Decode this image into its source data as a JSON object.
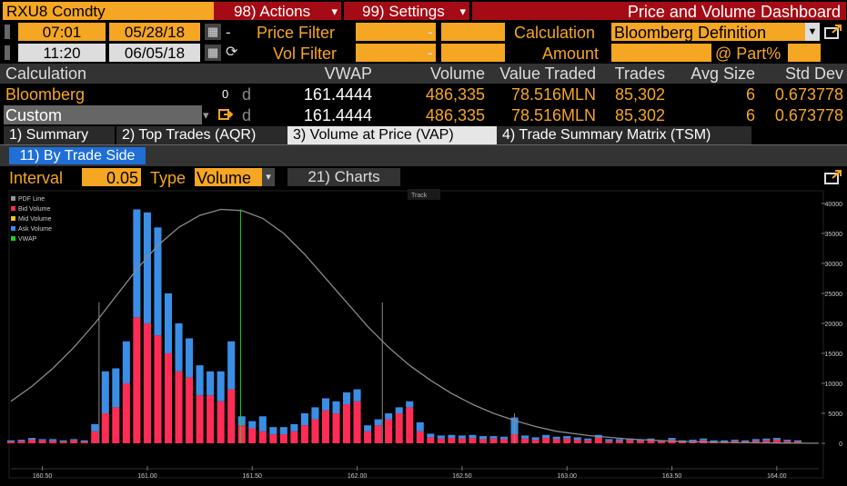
{
  "header": {
    "ticker": "RXU8 Comdty",
    "actions": "98) Actions",
    "settings": "99) Settings",
    "title": "Price and Volume Dashboard"
  },
  "time_row1": {
    "time": "07:01",
    "date": "05/28/18",
    "price_filter": "Price Filter",
    "dash": "-",
    "calc_label": "Calculation",
    "calc_value": "Bloomberg Definition"
  },
  "time_row2": {
    "time": "11:20",
    "date": "06/05/18",
    "vol_filter": "Vol Filter",
    "dash": "-",
    "amount": "Amount",
    "part": "@ Part%"
  },
  "table": {
    "headers": [
      "Calculation",
      "VWAP",
      "Volume",
      "Value Traded",
      "Trades",
      "Avg Size",
      "Std Dev"
    ],
    "rows": [
      {
        "name": "Bloomberg",
        "vwap": "161.4444",
        "volume": "486,335",
        "value": "78.516MLN",
        "trades": "85,302",
        "avg": "6",
        "std": "0.673778",
        "d": "d",
        "idx": "0"
      },
      {
        "name": "Custom",
        "vwap": "161.4444",
        "volume": "486,335",
        "value": "78.516MLN",
        "trades": "85,302",
        "avg": "6",
        "std": "0.673778",
        "d": "d"
      }
    ]
  },
  "tabs": [
    "1) Summary",
    "2) Top Trades (AQR)",
    "3) Volume at Price (VAP)",
    "4) Trade Summary Matrix (TSM)"
  ],
  "subtab": "11) By Trade Side",
  "controls": {
    "interval_label": "Interval",
    "interval_value": "0.05",
    "type_label": "Type",
    "type_value": "Volume",
    "charts": "21) Charts"
  },
  "chart_data": {
    "type": "bar",
    "track": "Track",
    "legend": [
      {
        "name": "PDF Line",
        "color": "#999999"
      },
      {
        "name": "Bid Volume",
        "color": "#ff2d55"
      },
      {
        "name": "Mid Volume",
        "color": "#f0c419"
      },
      {
        "name": "Ask Volume",
        "color": "#3a8ee6"
      },
      {
        "name": "VWAP",
        "color": "#22cc22"
      }
    ],
    "x_ticks": [
      "160.50",
      "161.00",
      "161.50",
      "162.00",
      "162.50",
      "163.00",
      "163.50",
      "164.00"
    ],
    "x_tick_values": [
      160.5,
      161.0,
      161.5,
      162.0,
      162.5,
      163.0,
      163.5,
      164.0
    ],
    "y_ticks": [
      "0",
      "5000",
      "10000",
      "15000",
      "20000",
      "25000",
      "30000",
      "35000",
      "40000"
    ],
    "y_tick_values": [
      0,
      5000,
      10000,
      15000,
      20000,
      25000,
      30000,
      35000,
      40000
    ],
    "xlim": [
      160.35,
      164.2
    ],
    "ylim": [
      0,
      41500
    ],
    "vwap": 161.4444,
    "bar_width": 0.035,
    "bars": [
      {
        "x": 160.35,
        "bid": 300,
        "ask": 200
      },
      {
        "x": 160.4,
        "bid": 400,
        "ask": 200
      },
      {
        "x": 160.45,
        "bid": 600,
        "ask": 300
      },
      {
        "x": 160.5,
        "bid": 500,
        "ask": 200
      },
      {
        "x": 160.55,
        "bid": 400,
        "ask": 300
      },
      {
        "x": 160.6,
        "bid": 300,
        "ask": 200
      },
      {
        "x": 160.65,
        "bid": 500,
        "ask": 200
      },
      {
        "x": 160.7,
        "bid": 300,
        "ask": 200
      },
      {
        "x": 160.75,
        "bid": 2000,
        "ask": 1200
      },
      {
        "x": 160.8,
        "bid": 5000,
        "ask": 7000
      },
      {
        "x": 160.85,
        "bid": 6000,
        "ask": 6500
      },
      {
        "x": 160.9,
        "bid": 10000,
        "ask": 7000
      },
      {
        "x": 160.95,
        "bid": 21000,
        "ask": 18000
      },
      {
        "x": 161.0,
        "bid": 20000,
        "ask": 18500
      },
      {
        "x": 161.05,
        "bid": 18000,
        "ask": 18000
      },
      {
        "x": 161.1,
        "bid": 15000,
        "ask": 10000
      },
      {
        "x": 161.15,
        "bid": 12000,
        "ask": 8000
      },
      {
        "x": 161.2,
        "bid": 11000,
        "ask": 6500
      },
      {
        "x": 161.25,
        "bid": 8000,
        "ask": 5000
      },
      {
        "x": 161.3,
        "bid": 8000,
        "ask": 4000
      },
      {
        "x": 161.35,
        "bid": 7000,
        "ask": 5000
      },
      {
        "x": 161.4,
        "bid": 9000,
        "ask": 8000
      },
      {
        "x": 161.45,
        "bid": 3000,
        "ask": 1500
      },
      {
        "x": 161.5,
        "bid": 2500,
        "ask": 1200
      },
      {
        "x": 161.55,
        "bid": 2000,
        "ask": 2500
      },
      {
        "x": 161.6,
        "bid": 1500,
        "ask": 1200
      },
      {
        "x": 161.65,
        "bid": 1500,
        "ask": 1200
      },
      {
        "x": 161.7,
        "bid": 2000,
        "ask": 1200
      },
      {
        "x": 161.75,
        "bid": 3000,
        "ask": 2000
      },
      {
        "x": 161.8,
        "bid": 4000,
        "ask": 2000
      },
      {
        "x": 161.85,
        "bid": 5500,
        "ask": 2000
      },
      {
        "x": 161.9,
        "bid": 5000,
        "ask": 2000
      },
      {
        "x": 161.95,
        "bid": 6500,
        "ask": 2000
      },
      {
        "x": 162.0,
        "bid": 7000,
        "ask": 2000
      },
      {
        "x": 162.05,
        "bid": 2000,
        "ask": 1000
      },
      {
        "x": 162.1,
        "bid": 3000,
        "ask": 1000
      },
      {
        "x": 162.15,
        "bid": 4000,
        "ask": 1000
      },
      {
        "x": 162.2,
        "bid": 5000,
        "ask": 1000
      },
      {
        "x": 162.25,
        "bid": 6000,
        "ask": 1000
      },
      {
        "x": 162.3,
        "bid": 2000,
        "ask": 1500
      },
      {
        "x": 162.35,
        "bid": 1000,
        "ask": 600
      },
      {
        "x": 162.4,
        "bid": 800,
        "ask": 500
      },
      {
        "x": 162.45,
        "bid": 900,
        "ask": 500
      },
      {
        "x": 162.5,
        "bid": 800,
        "ask": 500
      },
      {
        "x": 162.55,
        "bid": 900,
        "ask": 500
      },
      {
        "x": 162.6,
        "bid": 700,
        "ask": 500
      },
      {
        "x": 162.65,
        "bid": 800,
        "ask": 400
      },
      {
        "x": 162.7,
        "bid": 700,
        "ask": 400
      },
      {
        "x": 162.75,
        "bid": 1500,
        "ask": 2800
      },
      {
        "x": 162.8,
        "bid": 800,
        "ask": 500
      },
      {
        "x": 162.85,
        "bid": 600,
        "ask": 400
      },
      {
        "x": 162.9,
        "bid": 900,
        "ask": 500
      },
      {
        "x": 162.95,
        "bid": 700,
        "ask": 400
      },
      {
        "x": 163.0,
        "bid": 800,
        "ask": 400
      },
      {
        "x": 163.05,
        "bid": 600,
        "ask": 400
      },
      {
        "x": 163.1,
        "bid": 500,
        "ask": 300
      },
      {
        "x": 163.15,
        "bid": 900,
        "ask": 500
      },
      {
        "x": 163.2,
        "bid": 400,
        "ask": 300
      },
      {
        "x": 163.25,
        "bid": 400,
        "ask": 300
      },
      {
        "x": 163.3,
        "bid": 500,
        "ask": 300
      },
      {
        "x": 163.35,
        "bid": 400,
        "ask": 200
      },
      {
        "x": 163.4,
        "bid": 500,
        "ask": 300
      },
      {
        "x": 163.45,
        "bid": 300,
        "ask": 200
      },
      {
        "x": 163.5,
        "bid": 600,
        "ask": 300
      },
      {
        "x": 163.55,
        "bid": 300,
        "ask": 200
      },
      {
        "x": 163.6,
        "bid": 400,
        "ask": 200
      },
      {
        "x": 163.65,
        "bid": 500,
        "ask": 300
      },
      {
        "x": 163.7,
        "bid": 300,
        "ask": 200
      },
      {
        "x": 163.75,
        "bid": 300,
        "ask": 200
      },
      {
        "x": 163.8,
        "bid": 400,
        "ask": 200
      },
      {
        "x": 163.85,
        "bid": 300,
        "ask": 200
      },
      {
        "x": 163.9,
        "bid": 400,
        "ask": 300
      },
      {
        "x": 163.95,
        "bid": 500,
        "ask": 300
      },
      {
        "x": 164.0,
        "bid": 600,
        "ask": 300
      },
      {
        "x": 164.05,
        "bid": 400,
        "ask": 200
      },
      {
        "x": 164.1,
        "bid": 300,
        "ask": 200
      }
    ],
    "pdf_line": [
      {
        "x": 160.35,
        "y": 7000
      },
      {
        "x": 160.45,
        "y": 9500
      },
      {
        "x": 160.55,
        "y": 12500
      },
      {
        "x": 160.65,
        "y": 16000
      },
      {
        "x": 160.75,
        "y": 20000
      },
      {
        "x": 160.85,
        "y": 24500
      },
      {
        "x": 160.95,
        "y": 29000
      },
      {
        "x": 161.05,
        "y": 33000
      },
      {
        "x": 161.15,
        "y": 36000
      },
      {
        "x": 161.25,
        "y": 38000
      },
      {
        "x": 161.35,
        "y": 39000
      },
      {
        "x": 161.45,
        "y": 38800
      },
      {
        "x": 161.55,
        "y": 37500
      },
      {
        "x": 161.65,
        "y": 35000
      },
      {
        "x": 161.75,
        "y": 31500
      },
      {
        "x": 161.85,
        "y": 27500
      },
      {
        "x": 161.95,
        "y": 23500
      },
      {
        "x": 162.05,
        "y": 19500
      },
      {
        "x": 162.15,
        "y": 16000
      },
      {
        "x": 162.25,
        "y": 13000
      },
      {
        "x": 162.35,
        "y": 10500
      },
      {
        "x": 162.45,
        "y": 8300
      },
      {
        "x": 162.55,
        "y": 6500
      },
      {
        "x": 162.65,
        "y": 5000
      },
      {
        "x": 162.75,
        "y": 3800
      },
      {
        "x": 162.85,
        "y": 2800
      },
      {
        "x": 162.95,
        "y": 2000
      },
      {
        "x": 163.1,
        "y": 1300
      },
      {
        "x": 163.3,
        "y": 700
      },
      {
        "x": 163.5,
        "y": 350
      },
      {
        "x": 163.75,
        "y": 150
      },
      {
        "x": 164.0,
        "y": 50
      },
      {
        "x": 164.2,
        "y": 20
      }
    ],
    "sigma_lines": [
      {
        "x": 160.77,
        "y": 23500
      },
      {
        "x": 162.12,
        "y": 23500
      },
      {
        "x": 162.75,
        "y": 5000
      }
    ]
  }
}
